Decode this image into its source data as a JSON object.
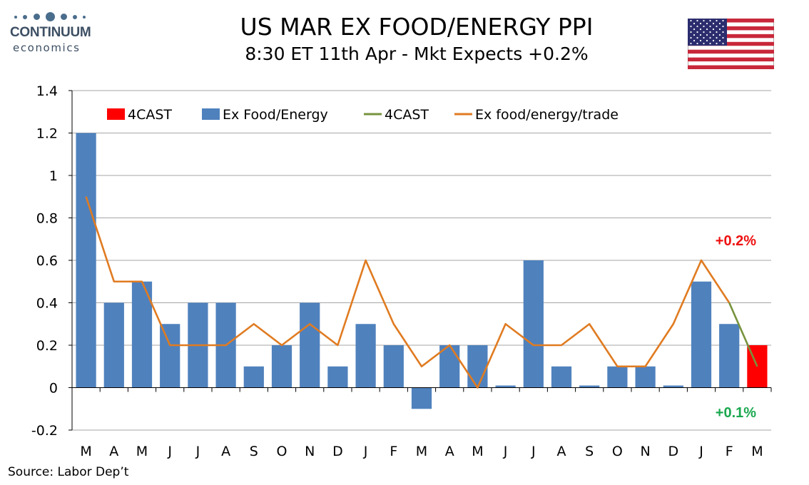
{
  "logo": {
    "line1": "CONTINUUM",
    "line2": "economics"
  },
  "header": {
    "title": "US MAR EX FOOD/ENERGY PPI",
    "subtitle": "8:30 ET 11th Apr - Mkt Expects +0.2%"
  },
  "source": "Source: Labor Dep’t",
  "colors": {
    "bars": "#4f81bd",
    "forecast_bar": "#ff0000",
    "line": "#e07b21",
    "forecast_line": "#77933c",
    "label_up": "#ee1111",
    "label_down": "#1aa84f"
  },
  "chart_data": {
    "type": "bar",
    "categories": [
      "M",
      "A",
      "M",
      "J",
      "J",
      "A",
      "S",
      "O",
      "N",
      "D",
      "J",
      "F",
      "M",
      "A",
      "M",
      "J",
      "J",
      "A",
      "S",
      "O",
      "N",
      "D",
      "J",
      "F",
      "M"
    ],
    "ylim": [
      -0.2,
      1.4
    ],
    "yticks": [
      "-0.2",
      "0",
      "0.2",
      "0.4",
      "0.6",
      "0.8",
      "1",
      "1.2",
      "1.4"
    ],
    "grid": true,
    "legend_placement": "top",
    "legend": [
      "4CAST",
      "Ex Food/Energy",
      "4CAST",
      "Ex food/energy/trade"
    ],
    "series": [
      {
        "name": "Ex Food/Energy",
        "kind": "bar",
        "values": [
          1.2,
          0.4,
          0.5,
          0.3,
          0.4,
          0.4,
          0.1,
          0.2,
          0.4,
          0.1,
          0.3,
          0.2,
          -0.1,
          0.2,
          0.2,
          0.01,
          0.6,
          0.1,
          0.01,
          0.1,
          0.1,
          0.01,
          0.5,
          0.3,
          null
        ]
      },
      {
        "name": "4CAST",
        "kind": "bar",
        "index": 24,
        "value": 0.2
      },
      {
        "name": "Ex food/energy/trade",
        "kind": "line",
        "values": [
          0.9,
          0.5,
          0.5,
          0.2,
          0.2,
          0.2,
          0.3,
          0.2,
          0.3,
          0.2,
          0.6,
          0.3,
          0.1,
          0.2,
          0.0,
          0.3,
          0.2,
          0.2,
          0.3,
          0.1,
          0.1,
          0.3,
          0.6,
          0.4,
          null
        ]
      },
      {
        "name": "4CAST",
        "kind": "line",
        "from_index": 23,
        "from": 0.4,
        "to_index": 24,
        "to": 0.1
      }
    ],
    "annotations": [
      {
        "text": "+0.2%",
        "anchor_index": 24,
        "anchor_value": 0.69,
        "color": "red"
      },
      {
        "text": "+0.1%",
        "anchor_index": 24,
        "anchor_value": -0.12,
        "color": "green"
      }
    ]
  }
}
